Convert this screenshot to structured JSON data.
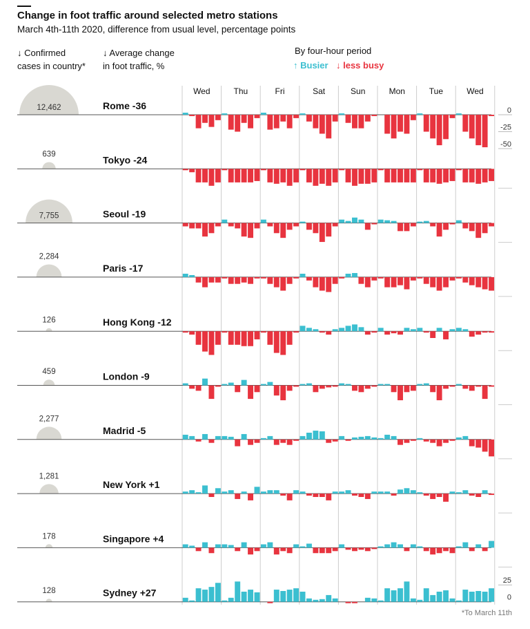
{
  "title": "Change in foot traffic around selected metro stations",
  "subtitle": "March 4th-11th 2020, difference from usual level, percentage points",
  "column_headers": {
    "cases": "↓ Confirmed\ncases in country*",
    "change": "↓ Average change\nin foot traffic, %"
  },
  "legend": {
    "title": "By four-hour period",
    "busier": "↑ Busier",
    "less_busy": "↓ less busy",
    "busier_color": "#3bbfd0",
    "less_busy_color": "#e8343f"
  },
  "footnote": "*To March 11th",
  "chart_data": {
    "type": "bar",
    "days": [
      "Wed",
      "Thu",
      "Fri",
      "Sat",
      "Sun",
      "Mon",
      "Tue",
      "Wed"
    ],
    "periods_per_day": 6,
    "y_ticks": [
      "0",
      "-25",
      "-50",
      "25"
    ],
    "rows": [
      {
        "city": "Rome",
        "label": "Rome -36",
        "cases": 12462,
        "cases_label": "12,462",
        "values": [
          3,
          -2,
          -20,
          -12,
          -18,
          -8,
          2,
          -22,
          -25,
          -12,
          -20,
          -5,
          3,
          -22,
          -20,
          -10,
          -20,
          -5,
          2,
          -10,
          -20,
          -28,
          -35,
          -10,
          2,
          -12,
          -20,
          -20,
          -10,
          -2,
          0,
          -28,
          -35,
          -25,
          -28,
          -8,
          2,
          -25,
          -35,
          -45,
          -36,
          -5,
          2,
          -25,
          -35,
          -45,
          -48,
          -2
        ]
      },
      {
        "city": "Tokyo",
        "label": "Tokyo -24",
        "cases": 639,
        "cases_label": "639",
        "values": [
          -2,
          -5,
          -20,
          -20,
          -25,
          -20,
          -2,
          -20,
          -20,
          -20,
          -20,
          -18,
          -2,
          -20,
          -22,
          -20,
          -25,
          -20,
          -2,
          -20,
          -25,
          -22,
          -25,
          -20,
          -2,
          -20,
          -25,
          -22,
          -22,
          -20,
          -2,
          -20,
          -20,
          -20,
          -20,
          -20,
          -2,
          -20,
          -20,
          -22,
          -20,
          -18,
          -2,
          -20,
          -20,
          -22,
          -20,
          -18
        ]
      },
      {
        "city": "Seoul",
        "label": "Seoul -19",
        "cases": 7755,
        "cases_label": "7,755",
        "values": [
          -5,
          -8,
          -8,
          -20,
          -15,
          -5,
          5,
          -5,
          -8,
          -20,
          -22,
          -8,
          5,
          -5,
          -15,
          -22,
          -10,
          -5,
          2,
          -10,
          -15,
          -28,
          -20,
          -5,
          5,
          3,
          8,
          5,
          -10,
          -2,
          5,
          4,
          3,
          -12,
          -12,
          -5,
          2,
          3,
          -5,
          -20,
          -10,
          -2,
          4,
          -8,
          -12,
          -22,
          -15,
          -5
        ]
      },
      {
        "city": "Paris",
        "label": "Paris -17",
        "cases": 2284,
        "cases_label": "2,284",
        "values": [
          5,
          3,
          -8,
          -15,
          -8,
          -8,
          -2,
          -10,
          -10,
          -8,
          -10,
          -2,
          -2,
          -10,
          -15,
          -20,
          -10,
          -2,
          5,
          -5,
          -15,
          -20,
          -22,
          -10,
          -2,
          5,
          6,
          -10,
          -15,
          -5,
          -2,
          -15,
          -15,
          -12,
          -18,
          -5,
          -2,
          -10,
          -15,
          -20,
          -15,
          -5,
          -2,
          -8,
          -12,
          -15,
          -18,
          -20
        ]
      },
      {
        "city": "Hong Kong",
        "label": "Hong Kong -12",
        "cases": 126,
        "cases_label": "126",
        "values": [
          -2,
          -5,
          -20,
          -30,
          -35,
          -20,
          -2,
          -20,
          -20,
          -22,
          -22,
          -12,
          -2,
          -20,
          -32,
          -35,
          -20,
          -2,
          8,
          5,
          3,
          -2,
          -5,
          3,
          5,
          8,
          10,
          6,
          -5,
          -2,
          5,
          -5,
          -3,
          -5,
          5,
          3,
          5,
          -2,
          -10,
          5,
          -12,
          3,
          5,
          3,
          -8,
          -5,
          -2,
          -2
        ]
      },
      {
        "city": "London",
        "label": "London -9",
        "cases": 459,
        "cases_label": "459",
        "values": [
          3,
          -5,
          -8,
          10,
          -20,
          -2,
          2,
          4,
          -10,
          8,
          -20,
          -10,
          2,
          5,
          -15,
          -22,
          -8,
          -2,
          2,
          3,
          -10,
          -5,
          -3,
          -2,
          3,
          2,
          -8,
          -10,
          -5,
          -2,
          2,
          2,
          -10,
          -22,
          -10,
          -8,
          2,
          3,
          -10,
          -22,
          -5,
          -2,
          2,
          -5,
          -8,
          -2,
          -20,
          -2
        ]
      },
      {
        "city": "Madrid",
        "label": "Madrid -5",
        "cases": 2277,
        "cases_label": "2,277",
        "values": [
          7,
          5,
          -3,
          8,
          -5,
          5,
          5,
          4,
          -10,
          8,
          -8,
          -5,
          2,
          5,
          -8,
          -5,
          -8,
          -2,
          5,
          10,
          13,
          12,
          -5,
          -3,
          5,
          -2,
          3,
          4,
          5,
          3,
          2,
          7,
          5,
          -8,
          -5,
          -2,
          2,
          -3,
          -5,
          -10,
          -5,
          -2,
          3,
          5,
          -10,
          -12,
          -18,
          -25
        ]
      },
      {
        "city": "New York",
        "label": "New York +1",
        "cases": 1281,
        "cases_label": "1,281",
        "values": [
          3,
          5,
          2,
          12,
          -5,
          8,
          3,
          5,
          -8,
          3,
          -10,
          10,
          3,
          5,
          5,
          -3,
          -10,
          5,
          3,
          -3,
          -5,
          -5,
          -10,
          3,
          3,
          5,
          -3,
          -5,
          -8,
          3,
          3,
          3,
          -3,
          6,
          8,
          5,
          2,
          -3,
          -8,
          -5,
          -12,
          3,
          2,
          5,
          -3,
          -5,
          5,
          -2
        ]
      },
      {
        "city": "Singapore",
        "label": "Singapore +4",
        "cases": 178,
        "cases_label": "178",
        "values": [
          5,
          3,
          -5,
          8,
          -8,
          5,
          5,
          4,
          -5,
          8,
          -10,
          -5,
          5,
          8,
          -10,
          -5,
          -8,
          5,
          2,
          6,
          -8,
          -8,
          -8,
          -5,
          5,
          -3,
          -5,
          -3,
          -5,
          -2,
          2,
          5,
          8,
          5,
          -5,
          5,
          2,
          -5,
          -10,
          -8,
          -5,
          -8,
          2,
          8,
          -5,
          5,
          -5,
          10
        ]
      },
      {
        "city": "Sydney",
        "label": "Sydney +27",
        "cases": 128,
        "cases_label": "128",
        "values": [
          6,
          2,
          20,
          18,
          22,
          28,
          2,
          6,
          30,
          15,
          18,
          14,
          0,
          -2,
          18,
          16,
          18,
          20,
          15,
          5,
          3,
          4,
          10,
          5,
          0,
          -2,
          -2,
          0,
          6,
          5,
          2,
          20,
          17,
          20,
          30,
          5,
          3,
          20,
          10,
          15,
          17,
          5,
          2,
          18,
          15,
          16,
          15,
          20
        ]
      }
    ]
  }
}
